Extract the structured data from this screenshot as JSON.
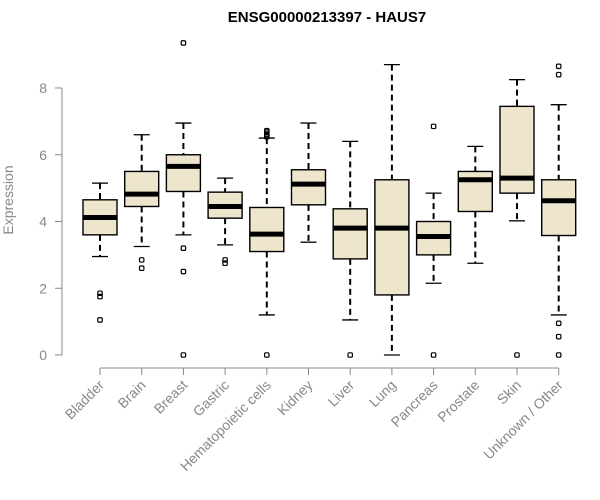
{
  "chart_data": {
    "type": "boxplot",
    "title": "ENSG00000213397 - HAUS7",
    "xlabel": "",
    "ylabel": "Expression",
    "ylim": [
      0,
      9.5
    ],
    "yticks": [
      0,
      2,
      4,
      6,
      8
    ],
    "box_fill": "#ede6cd",
    "categories": [
      "Bladder",
      "Brain",
      "Breast",
      "Gastric",
      "Hematopoietic cells",
      "Kidney",
      "Liver",
      "Lung",
      "Pancreas",
      "Prostate",
      "Skin",
      "Unknown / Other"
    ],
    "boxes": [
      {
        "name": "Bladder",
        "whisker_low": 2.95,
        "q1": 3.6,
        "median": 4.12,
        "q3": 4.65,
        "whisker_high": 5.15,
        "outliers": [
          1.85,
          1.75,
          1.05
        ]
      },
      {
        "name": "Brain",
        "whisker_low": 3.25,
        "q1": 4.45,
        "median": 4.82,
        "q3": 5.5,
        "whisker_high": 6.6,
        "outliers": [
          2.85,
          2.6
        ]
      },
      {
        "name": "Breast",
        "whisker_low": 3.6,
        "q1": 4.9,
        "median": 5.65,
        "q3": 6.0,
        "whisker_high": 6.95,
        "outliers": [
          9.35,
          3.2,
          2.5,
          0.0
        ]
      },
      {
        "name": "Gastric",
        "whisker_low": 3.3,
        "q1": 4.1,
        "median": 4.45,
        "q3": 4.88,
        "whisker_high": 5.3,
        "outliers": [
          2.85,
          2.75
        ]
      },
      {
        "name": "Hematopoietic cells",
        "whisker_low": 1.2,
        "q1": 3.1,
        "median": 3.62,
        "q3": 4.42,
        "whisker_high": 6.5,
        "outliers": [
          6.72,
          6.68,
          6.62,
          6.58,
          6.54,
          0.0
        ]
      },
      {
        "name": "Kidney",
        "whisker_low": 3.38,
        "q1": 4.5,
        "median": 5.12,
        "q3": 5.55,
        "whisker_high": 6.95,
        "outliers": []
      },
      {
        "name": "Liver",
        "whisker_low": 1.05,
        "q1": 2.88,
        "median": 3.8,
        "q3": 4.38,
        "whisker_high": 6.4,
        "outliers": [
          0.0
        ]
      },
      {
        "name": "Lung",
        "whisker_low": 0.0,
        "q1": 1.8,
        "median": 3.8,
        "q3": 5.25,
        "whisker_high": 8.7,
        "outliers": []
      },
      {
        "name": "Pancreas",
        "whisker_low": 2.15,
        "q1": 3.0,
        "median": 3.55,
        "q3": 4.0,
        "whisker_high": 4.85,
        "outliers": [
          6.85,
          0.0
        ]
      },
      {
        "name": "Prostate",
        "whisker_low": 2.75,
        "q1": 4.3,
        "median": 5.25,
        "q3": 5.5,
        "whisker_high": 6.25,
        "outliers": []
      },
      {
        "name": "Skin",
        "whisker_low": 4.02,
        "q1": 4.85,
        "median": 5.3,
        "q3": 7.45,
        "whisker_high": 8.25,
        "outliers": [
          0.0
        ]
      },
      {
        "name": "Unknown / Other",
        "whisker_low": 1.2,
        "q1": 3.58,
        "median": 4.62,
        "q3": 5.25,
        "whisker_high": 7.5,
        "outliers": [
          8.65,
          8.4,
          0.95,
          0.55,
          0.0
        ]
      }
    ]
  }
}
